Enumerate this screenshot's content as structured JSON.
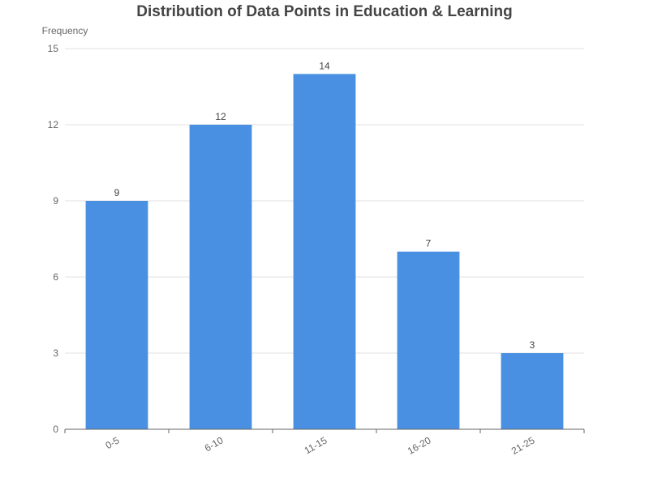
{
  "chart_data": {
    "type": "bar",
    "title": "Distribution of Data Points in Education & Learning",
    "xlabel": "",
    "ylabel": "Frequency",
    "categories": [
      "0-5",
      "6-10",
      "11-15",
      "16-20",
      "21-25"
    ],
    "values": [
      9,
      12,
      14,
      7,
      3
    ],
    "ylim": [
      0,
      15
    ],
    "yticks": [
      0,
      3,
      6,
      9,
      12,
      15
    ],
    "grid": true,
    "legend": "none",
    "show_data_labels": true
  },
  "colors": {
    "bar": "#4a90e2",
    "grid": "#e0e0e0",
    "axis": "#666666",
    "tick_text": "#666666",
    "title": "#444444",
    "data_label": "#444444"
  }
}
